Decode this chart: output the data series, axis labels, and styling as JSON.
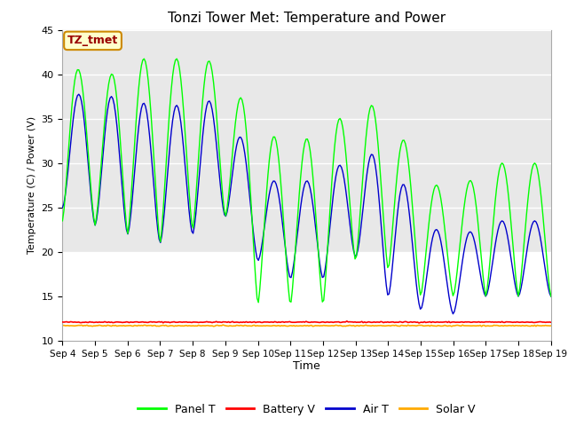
{
  "title": "Tonzi Tower Met: Temperature and Power",
  "xlabel": "Time",
  "ylabel": "Temperature (C) / Power (V)",
  "ylim": [
    10,
    45
  ],
  "annotation_text": "TZ_tmet",
  "legend_labels": [
    "Panel T",
    "Battery V",
    "Air T",
    "Solar V"
  ],
  "legend_colors": [
    "#00ff00",
    "#ff0000",
    "#0000cc",
    "#ffaa00"
  ],
  "background_color": "#ffffff",
  "plot_bg_color": "#ffffff",
  "shade_color": "#e8e8e8",
  "tick_labels": [
    "Sep 4",
    "Sep 5",
    "Sep 6",
    "Sep 7",
    "Sep 8",
    "Sep 9",
    "Sep 10",
    "Sep 11",
    "Sep 12",
    "Sep 13",
    "Sep 14",
    "Sep 15",
    "Sep 16",
    "Sep 17",
    "Sep 18",
    "Sep 19"
  ],
  "battery_v": 12.1,
  "solar_v": 11.7,
  "panel_peaks": [
    43,
    38,
    42,
    41.5,
    42,
    41,
    33.5,
    32.5,
    33,
    37,
    36,
    29,
    26,
    30
  ],
  "panel_troughs": [
    23.5,
    23,
    22,
    21,
    22.5,
    24,
    14,
    14,
    14,
    19,
    18,
    15,
    15,
    15
  ],
  "air_peaks": [
    38,
    37.5,
    37.5,
    36,
    37,
    37,
    28.5,
    27.5,
    28.5,
    31,
    31,
    24,
    21,
    23.5
  ],
  "air_troughs": [
    25,
    23,
    22,
    21,
    22,
    24,
    19,
    17,
    17,
    19.5,
    15,
    13.5,
    13,
    15
  ]
}
